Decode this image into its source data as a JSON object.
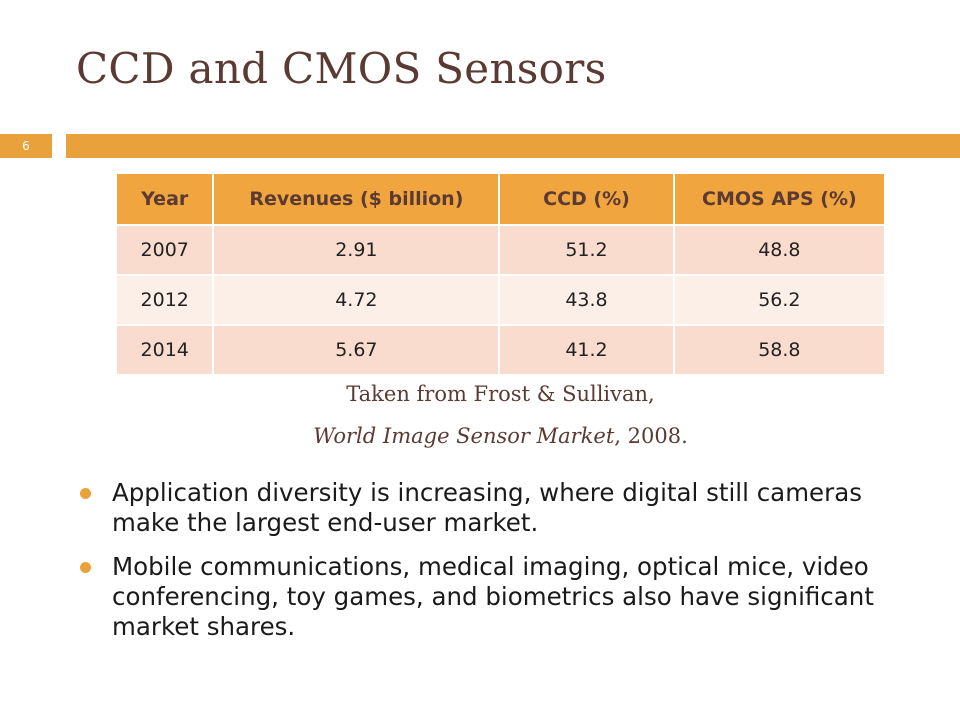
{
  "slide": {
    "title": "CCD and CMOS Sensors",
    "page_number": "6",
    "accent_color": "#e9a23b",
    "title_color": "#5a3a32"
  },
  "table": {
    "headers": [
      "Year",
      "Revenues ($ billion)",
      "CCD (%)",
      "CMOS APS (%)"
    ],
    "rows": [
      [
        "2007",
        "2.91",
        "51.2",
        "48.8"
      ],
      [
        "2012",
        "4.72",
        "43.8",
        "56.2"
      ],
      [
        "2014",
        "5.67",
        "41.2",
        "58.8"
      ]
    ]
  },
  "source": {
    "line1": "Taken from Frost & Sullivan,",
    "line2_italic": "World Image Sensor Market",
    "line2_rest": ", 2008."
  },
  "bullets": [
    "Application diversity is increasing, where digital still cameras make the largest end-user market.",
    "Mobile communications, medical imaging, optical mice, video conferencing, toy games, and biometrics also have significant market shares."
  ]
}
